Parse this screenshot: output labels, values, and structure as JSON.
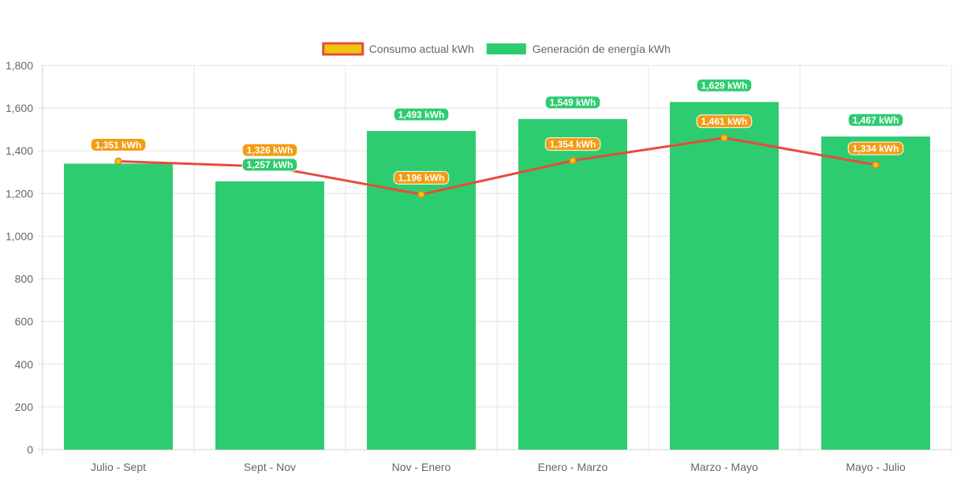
{
  "chart_data": {
    "type": "bar",
    "categories": [
      "Julio - Sept",
      "Sept - Nov",
      "Nov - Enero",
      "Enero - Marzo",
      "Marzo - Mayo",
      "Mayo - Julio"
    ],
    "series": [
      {
        "name": "Consumo actual kWh",
        "type": "line",
        "values": [
          1351,
          1326,
          1196,
          1354,
          1461,
          1334
        ],
        "labels": [
          "1,351 kWh",
          "1,326 kWh",
          "1,196 kWh",
          "1,354 kWh",
          "1,461 kWh",
          "1,334 kWh"
        ],
        "color": "#e74c3c",
        "point_color": "#f1c40f",
        "label_bg": "#f39c12"
      },
      {
        "name": "Generación de energía kWh",
        "type": "bar",
        "values": [
          1340,
          1257,
          1493,
          1549,
          1629,
          1467
        ],
        "labels": [
          "",
          "1,257 kWh",
          "1,493 kWh",
          "1,549 kWh",
          "1,629 kWh",
          "1,467 kWh"
        ],
        "color": "#2ecc71",
        "label_bg": "#2ecc71"
      }
    ],
    "yticks": [
      "0",
      "200",
      "400",
      "600",
      "800",
      "1,000",
      "1,200",
      "1,400",
      "1,600",
      "1,800"
    ],
    "ylim": [
      0,
      1800
    ],
    "grid": true,
    "legend": "top-center",
    "title": "",
    "xlabel": "",
    "ylabel": ""
  }
}
